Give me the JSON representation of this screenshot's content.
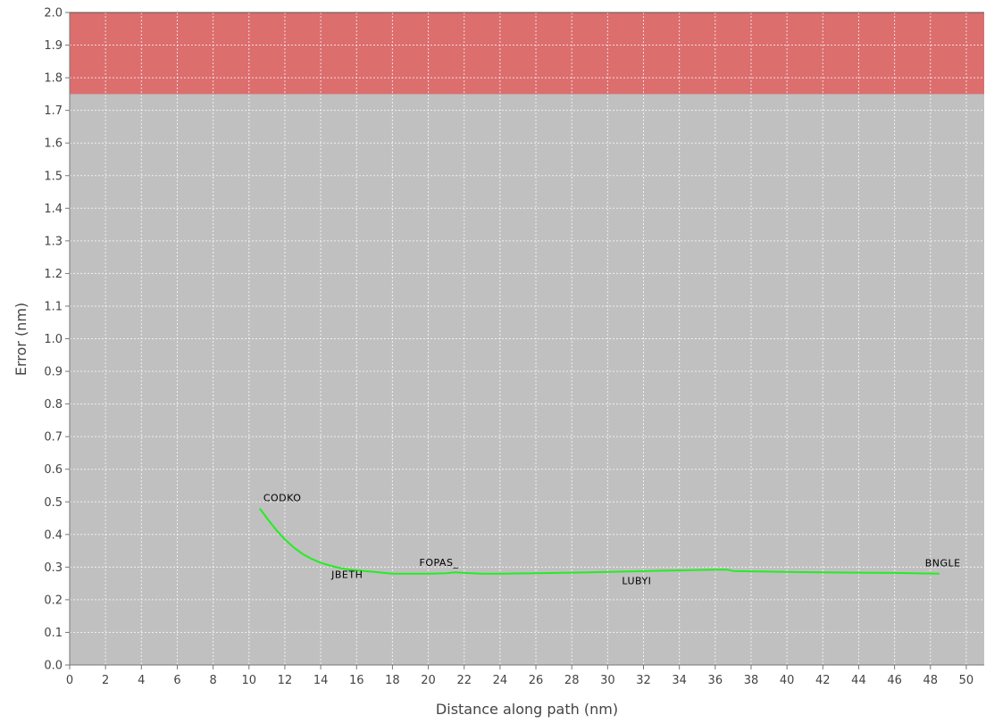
{
  "chart_data": {
    "type": "line",
    "xlabel": "Distance along path (nm)",
    "ylabel": "Error (nm)",
    "xlim": [
      0,
      51
    ],
    "ylim": [
      0,
      2.0
    ],
    "x_ticks": [
      "0",
      "2",
      "4",
      "6",
      "8",
      "10",
      "12",
      "14",
      "16",
      "18",
      "20",
      "22",
      "24",
      "26",
      "28",
      "30",
      "32",
      "34",
      "36",
      "38",
      "40",
      "42",
      "44",
      "46",
      "48",
      "50"
    ],
    "y_ticks": [
      "0.0",
      "0.1",
      "0.2",
      "0.3",
      "0.4",
      "0.5",
      "0.6",
      "0.7",
      "0.8",
      "0.9",
      "1.0",
      "1.1",
      "1.2",
      "1.3",
      "1.4",
      "1.5",
      "1.6",
      "1.7",
      "1.8",
      "1.9",
      "2.0"
    ],
    "grid": true,
    "threshold_band": {
      "from": 1.75,
      "to": 2.0,
      "color": "#dc6e6e"
    },
    "plot_background": "#c0c0c0",
    "line_color": "#22ee22",
    "series": [
      {
        "points": [
          [
            10.6,
            0.48
          ],
          [
            11.0,
            0.45
          ],
          [
            11.5,
            0.415
          ],
          [
            12.0,
            0.385
          ],
          [
            12.5,
            0.36
          ],
          [
            13.0,
            0.34
          ],
          [
            13.5,
            0.325
          ],
          [
            14.0,
            0.313
          ],
          [
            14.5,
            0.305
          ],
          [
            15.0,
            0.298
          ],
          [
            15.5,
            0.293
          ],
          [
            16.0,
            0.29
          ],
          [
            17.0,
            0.285
          ],
          [
            18.0,
            0.28
          ],
          [
            19.0,
            0.28
          ],
          [
            20.0,
            0.28
          ],
          [
            21.0,
            0.281
          ],
          [
            21.5,
            0.284
          ],
          [
            22.0,
            0.282
          ],
          [
            23.0,
            0.28
          ],
          [
            24.0,
            0.28
          ],
          [
            26.0,
            0.281
          ],
          [
            28.0,
            0.283
          ],
          [
            30.0,
            0.285
          ],
          [
            31.5,
            0.287
          ],
          [
            33.0,
            0.289
          ],
          [
            34.0,
            0.29
          ],
          [
            35.0,
            0.291
          ],
          [
            36.0,
            0.292
          ],
          [
            36.7,
            0.292
          ],
          [
            37.0,
            0.288
          ],
          [
            38.0,
            0.287
          ],
          [
            40.0,
            0.285
          ],
          [
            42.0,
            0.284
          ],
          [
            44.0,
            0.283
          ],
          [
            46.0,
            0.282
          ],
          [
            48.5,
            0.28
          ]
        ]
      }
    ],
    "annotations": [
      {
        "text": "CODKO",
        "x": 10.6,
        "y": 0.48,
        "anchor": "above-right"
      },
      {
        "text": "JBETH",
        "x": 14.4,
        "y": 0.305,
        "anchor": "below-right"
      },
      {
        "text": "FOPAS_",
        "x": 19.3,
        "y": 0.282,
        "anchor": "above-right"
      },
      {
        "text": "LUBYI",
        "x": 30.6,
        "y": 0.286,
        "anchor": "below-right"
      },
      {
        "text": "BNGLE",
        "x": 47.5,
        "y": 0.28,
        "anchor": "above-right"
      }
    ]
  }
}
